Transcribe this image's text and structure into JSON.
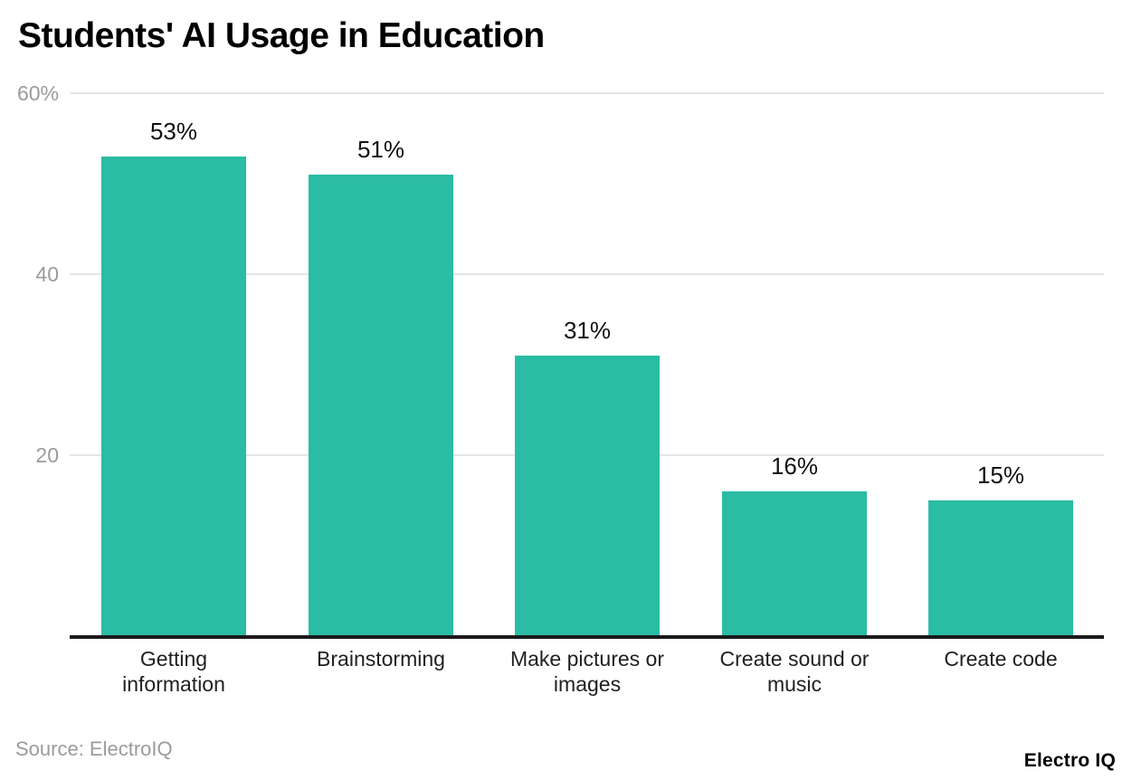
{
  "chart_data": {
    "type": "bar",
    "title": "Students' AI Usage in Education",
    "categories": [
      "Getting information",
      "Brainstorming",
      "Make pictures or images",
      "Create sound or music",
      "Create code"
    ],
    "category_display": [
      "Getting\ninformation",
      "Brainstorming",
      "Make pictures or\nimages",
      "Create sound or\nmusic",
      "Create code"
    ],
    "values": [
      53,
      51,
      31,
      16,
      15
    ],
    "value_labels": [
      "53%",
      "51%",
      "31%",
      "16%",
      "15%"
    ],
    "yticks": [
      {
        "value": 60,
        "label": "60%"
      },
      {
        "value": 40,
        "label": "40"
      },
      {
        "value": 20,
        "label": "20"
      }
    ],
    "ylim": [
      0,
      60
    ],
    "grid": true,
    "legend": false,
    "xlabel": "",
    "ylabel": "",
    "colors": {
      "bar": "#2abca5",
      "gridline": "#e5e5e5",
      "axis_line": "#1a1a1a",
      "ytick_label": "#9b9b9b",
      "xtick_label": "#1f1f1f",
      "value_label": "#111111"
    }
  },
  "footer": {
    "source": "Source: ElectroIQ",
    "brand": "Electro IQ"
  }
}
